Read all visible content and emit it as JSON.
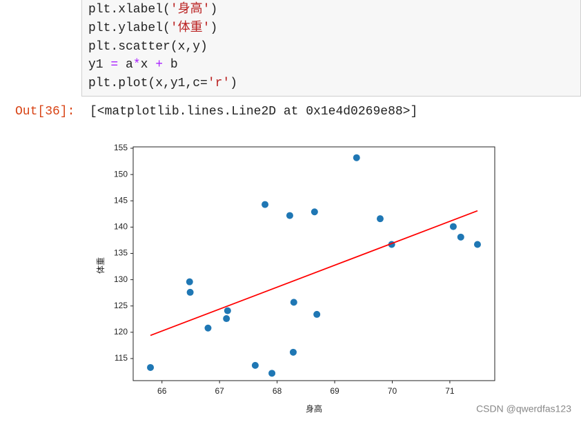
{
  "code": {
    "lines": [
      [
        {
          "t": "plt.xlabel("
        },
        {
          "t": "'身高'",
          "color": "#ba2121"
        },
        {
          "t": ")"
        }
      ],
      [
        {
          "t": "plt.ylabel("
        },
        {
          "t": "'体重'",
          "color": "#ba2121"
        },
        {
          "t": ")"
        }
      ],
      [
        {
          "t": "plt.scatter(x,y)"
        }
      ],
      [
        {
          "t": "y1 "
        },
        {
          "t": "=",
          "color": "#aa22ff"
        },
        {
          "t": " a"
        },
        {
          "t": "*",
          "color": "#aa22ff"
        },
        {
          "t": "x "
        },
        {
          "t": "+",
          "color": "#aa22ff"
        },
        {
          "t": " b"
        }
      ],
      [
        {
          "t": "plt.plot(x,y1,c="
        },
        {
          "t": "'r'",
          "color": "#ba2121"
        },
        {
          "t": ")"
        }
      ]
    ]
  },
  "output": {
    "prompt": "Out[36]:",
    "text": "[<matplotlib.lines.Line2D at 0x1e4d0269e88>]"
  },
  "chart_data": {
    "type": "scatter",
    "xlabel": "身高",
    "ylabel": "体重",
    "xlim": [
      65.5,
      71.78
    ],
    "ylim": [
      110.8,
      155.26
    ],
    "xticks": [
      66,
      67,
      68,
      69,
      70,
      71
    ],
    "yticks": [
      115,
      120,
      125,
      130,
      135,
      140,
      145,
      150,
      155
    ],
    "series": [
      {
        "type": "scatter",
        "color": "#1f77b4",
        "x": [
          65.8,
          66.48,
          66.49,
          66.8,
          67.14,
          67.12,
          67.79,
          67.62,
          67.91,
          68.22,
          68.29,
          68.28,
          68.65,
          68.69,
          69.38,
          69.79,
          69.99,
          71.06,
          71.19,
          71.48
        ],
        "values": [
          113.3,
          129.6,
          127.6,
          120.8,
          124.1,
          122.6,
          144.3,
          113.7,
          112.2,
          142.2,
          125.7,
          116.2,
          142.9,
          123.4,
          153.2,
          141.6,
          136.7,
          140.1,
          138.1,
          136.7
        ]
      },
      {
        "type": "line",
        "color": "#ff0000",
        "x": [
          65.8,
          71.48
        ],
        "values": [
          119.4,
          143.1
        ]
      }
    ]
  },
  "watermark": "CSDN @qwerdfas123"
}
